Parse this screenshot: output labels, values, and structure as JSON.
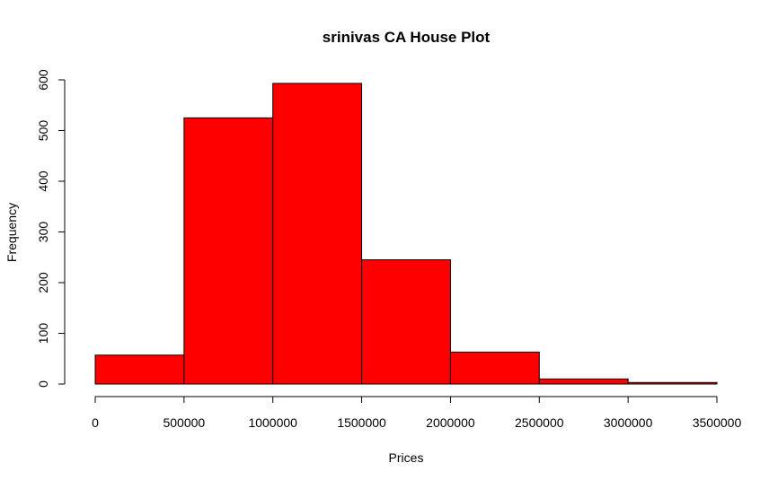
{
  "chart_data": {
    "type": "bar",
    "title": "srinivas CA House Plot",
    "xlabel": "Prices",
    "ylabel": "Frequency",
    "bins": [
      {
        "start": 0,
        "end": 500000,
        "count": 57
      },
      {
        "start": 500000,
        "end": 1000000,
        "count": 525
      },
      {
        "start": 1000000,
        "end": 1500000,
        "count": 593
      },
      {
        "start": 1500000,
        "end": 2000000,
        "count": 245
      },
      {
        "start": 2000000,
        "end": 2500000,
        "count": 63
      },
      {
        "start": 2500000,
        "end": 3000000,
        "count": 10
      },
      {
        "start": 3000000,
        "end": 3500000,
        "count": 3
      }
    ],
    "xlim": [
      0,
      3500000
    ],
    "ylim": [
      0,
      600
    ],
    "x_ticks": [
      "0",
      "500000",
      "1000000",
      "1500000",
      "2000000",
      "2500000",
      "3000000",
      "3500000"
    ],
    "y_ticks": [
      "0",
      "100",
      "200",
      "300",
      "400",
      "500",
      "600"
    ],
    "grid": false,
    "bar_color": "#ff0000"
  }
}
